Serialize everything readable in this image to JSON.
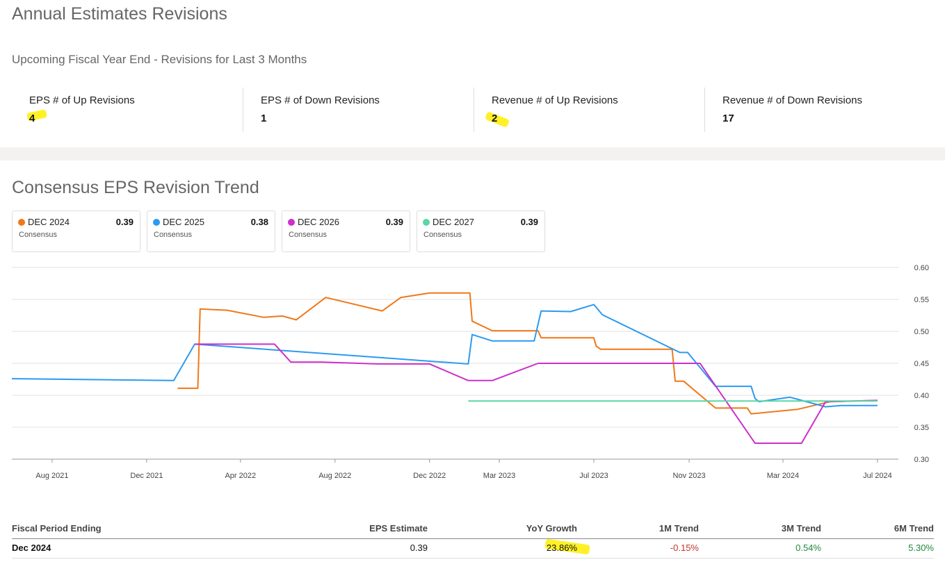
{
  "header": {
    "title": "Annual Estimates Revisions",
    "subtitle": "Upcoming Fiscal Year End - Revisions for Last 3 Months"
  },
  "stats": [
    {
      "label": "EPS # of Up Revisions",
      "value": "4"
    },
    {
      "label": "EPS # of Down Revisions",
      "value": "1"
    },
    {
      "label": "Revenue # of Up Revisions",
      "value": "2"
    },
    {
      "label": "Revenue # of Down Revisions",
      "value": "17"
    }
  ],
  "trend": {
    "title": "Consensus EPS Revision Trend"
  },
  "legend": [
    {
      "name": "DEC 2024",
      "value": "0.39",
      "sub": "Consensus",
      "color": "#f07818"
    },
    {
      "name": "DEC 2025",
      "value": "0.38",
      "sub": "Consensus",
      "color": "#2b9af0"
    },
    {
      "name": "DEC 2026",
      "value": "0.39",
      "sub": "Consensus",
      "color": "#cc2fcc"
    },
    {
      "name": "DEC 2027",
      "value": "0.39",
      "sub": "Consensus",
      "color": "#5cd6a4"
    }
  ],
  "chart_data": {
    "type": "line",
    "title": "",
    "xlabel": "",
    "ylabel": "",
    "ylim": [
      0.3,
      0.6
    ],
    "y_ticks": [
      "0.60",
      "0.55",
      "0.50",
      "0.45",
      "0.40",
      "0.35",
      "0.30"
    ],
    "x_range": [
      "2021-06-10",
      "2024-07-28"
    ],
    "x_ticks": [
      {
        "label": "Aug 2021",
        "date": "2021-08-01"
      },
      {
        "label": "Dec 2021",
        "date": "2021-12-01"
      },
      {
        "label": "Apr 2022",
        "date": "2022-04-01"
      },
      {
        "label": "Aug 2022",
        "date": "2022-08-01"
      },
      {
        "label": "Dec 2022",
        "date": "2022-12-01"
      },
      {
        "label": "Mar 2023",
        "date": "2023-03-01"
      },
      {
        "label": "Jul 2023",
        "date": "2023-07-01"
      },
      {
        "label": "Nov 2023",
        "date": "2023-11-01"
      },
      {
        "label": "Mar 2024",
        "date": "2024-03-01"
      },
      {
        "label": "Jul 2024",
        "date": "2024-07-01"
      }
    ],
    "grid": "horizontal",
    "series": [
      {
        "name": "DEC 2024",
        "color": "#f07818",
        "points": [
          [
            "2022-01-10",
            0.411
          ],
          [
            "2022-02-05",
            0.411
          ],
          [
            "2022-02-08",
            0.535
          ],
          [
            "2022-03-15",
            0.533
          ],
          [
            "2022-05-01",
            0.522
          ],
          [
            "2022-05-25",
            0.524
          ],
          [
            "2022-06-12",
            0.518
          ],
          [
            "2022-07-20",
            0.553
          ],
          [
            "2022-10-01",
            0.532
          ],
          [
            "2022-10-25",
            0.553
          ],
          [
            "2022-12-01",
            0.56
          ],
          [
            "2023-01-22",
            0.56
          ],
          [
            "2023-01-25",
            0.516
          ],
          [
            "2023-02-20",
            0.501
          ],
          [
            "2023-04-20",
            0.501
          ],
          [
            "2023-04-24",
            0.49
          ],
          [
            "2023-07-01",
            0.49
          ],
          [
            "2023-07-04",
            0.477
          ],
          [
            "2023-07-10",
            0.472
          ],
          [
            "2023-10-10",
            0.472
          ],
          [
            "2023-10-14",
            0.422
          ],
          [
            "2023-10-25",
            0.422
          ],
          [
            "2023-12-05",
            0.38
          ],
          [
            "2024-01-15",
            0.38
          ],
          [
            "2024-01-20",
            0.371
          ],
          [
            "2024-03-20",
            0.378
          ],
          [
            "2024-05-01",
            0.39
          ],
          [
            "2024-07-01",
            0.392
          ]
        ]
      },
      {
        "name": "DEC 2025",
        "color": "#2b9af0",
        "points": [
          [
            "2021-06-10",
            0.426
          ],
          [
            "2022-01-05",
            0.423
          ],
          [
            "2022-02-01",
            0.48
          ],
          [
            "2023-01-20",
            0.449
          ],
          [
            "2023-01-25",
            0.495
          ],
          [
            "2023-02-20",
            0.485
          ],
          [
            "2023-04-15",
            0.485
          ],
          [
            "2023-04-24",
            0.532
          ],
          [
            "2023-06-01",
            0.531
          ],
          [
            "2023-07-01",
            0.542
          ],
          [
            "2023-07-12",
            0.526
          ],
          [
            "2023-10-20",
            0.467
          ],
          [
            "2023-10-30",
            0.467
          ],
          [
            "2023-12-05",
            0.414
          ],
          [
            "2024-01-20",
            0.414
          ],
          [
            "2024-01-25",
            0.395
          ],
          [
            "2024-01-30",
            0.39
          ],
          [
            "2024-03-10",
            0.397
          ],
          [
            "2024-04-25",
            0.382
          ],
          [
            "2024-05-15",
            0.384
          ],
          [
            "2024-07-01",
            0.384
          ]
        ]
      },
      {
        "name": "DEC 2026",
        "color": "#cc2fcc",
        "points": [
          [
            "2022-02-01",
            0.48
          ],
          [
            "2022-05-15",
            0.48
          ],
          [
            "2022-06-05",
            0.452
          ],
          [
            "2022-07-15",
            0.452
          ],
          [
            "2022-09-25",
            0.449
          ],
          [
            "2022-12-01",
            0.449
          ],
          [
            "2023-01-20",
            0.423
          ],
          [
            "2023-02-20",
            0.423
          ],
          [
            "2023-04-20",
            0.45
          ],
          [
            "2023-07-01",
            0.45
          ],
          [
            "2023-11-15",
            0.45
          ],
          [
            "2024-01-25",
            0.325
          ],
          [
            "2024-03-25",
            0.325
          ],
          [
            "2024-04-25",
            0.39
          ],
          [
            "2024-07-01",
            0.392
          ]
        ]
      },
      {
        "name": "DEC 2027",
        "color": "#5cd6a4",
        "points": [
          [
            "2023-01-20",
            0.391
          ],
          [
            "2024-07-01",
            0.391
          ]
        ]
      }
    ]
  },
  "table": {
    "headers": [
      "Fiscal Period Ending",
      "EPS Estimate",
      "YoY Growth",
      "1M Trend",
      "3M Trend",
      "6M Trend"
    ],
    "rows": [
      {
        "period": "Dec 2024",
        "eps": "0.39",
        "yoy": "23.86%",
        "m1": "-0.15%",
        "m3": "0.54%",
        "m6": "5.30%"
      }
    ]
  }
}
